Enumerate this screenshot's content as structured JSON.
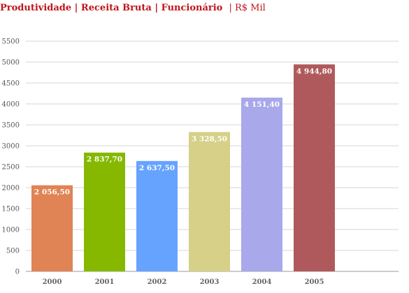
{
  "chart_data": {
    "type": "bar",
    "title": "Produtividade | Receita Bruta | Funcionário",
    "title_unit": "| R$ Mil",
    "categories": [
      "2000",
      "2001",
      "2002",
      "2003",
      "2004",
      "2005"
    ],
    "values": [
      2056.5,
      2837.7,
      2637.5,
      3328.5,
      4151.4,
      4944.8
    ],
    "data_labels": [
      "2 056,50",
      "2 837,70",
      "2 637,50",
      "3 328,50",
      "4 151,40",
      "4 944,80"
    ],
    "colors": [
      "#e08355",
      "#86b800",
      "#66a3ff",
      "#d6d088",
      "#a8a8ea",
      "#b0595c"
    ],
    "ylim": [
      0,
      5500
    ],
    "yticks": [
      "0",
      "500",
      "1000",
      "1500",
      "2000",
      "2500",
      "3000",
      "3500",
      "4000",
      "4500",
      "5000",
      "5500"
    ],
    "grid": true,
    "xlabel": "",
    "ylabel": ""
  }
}
